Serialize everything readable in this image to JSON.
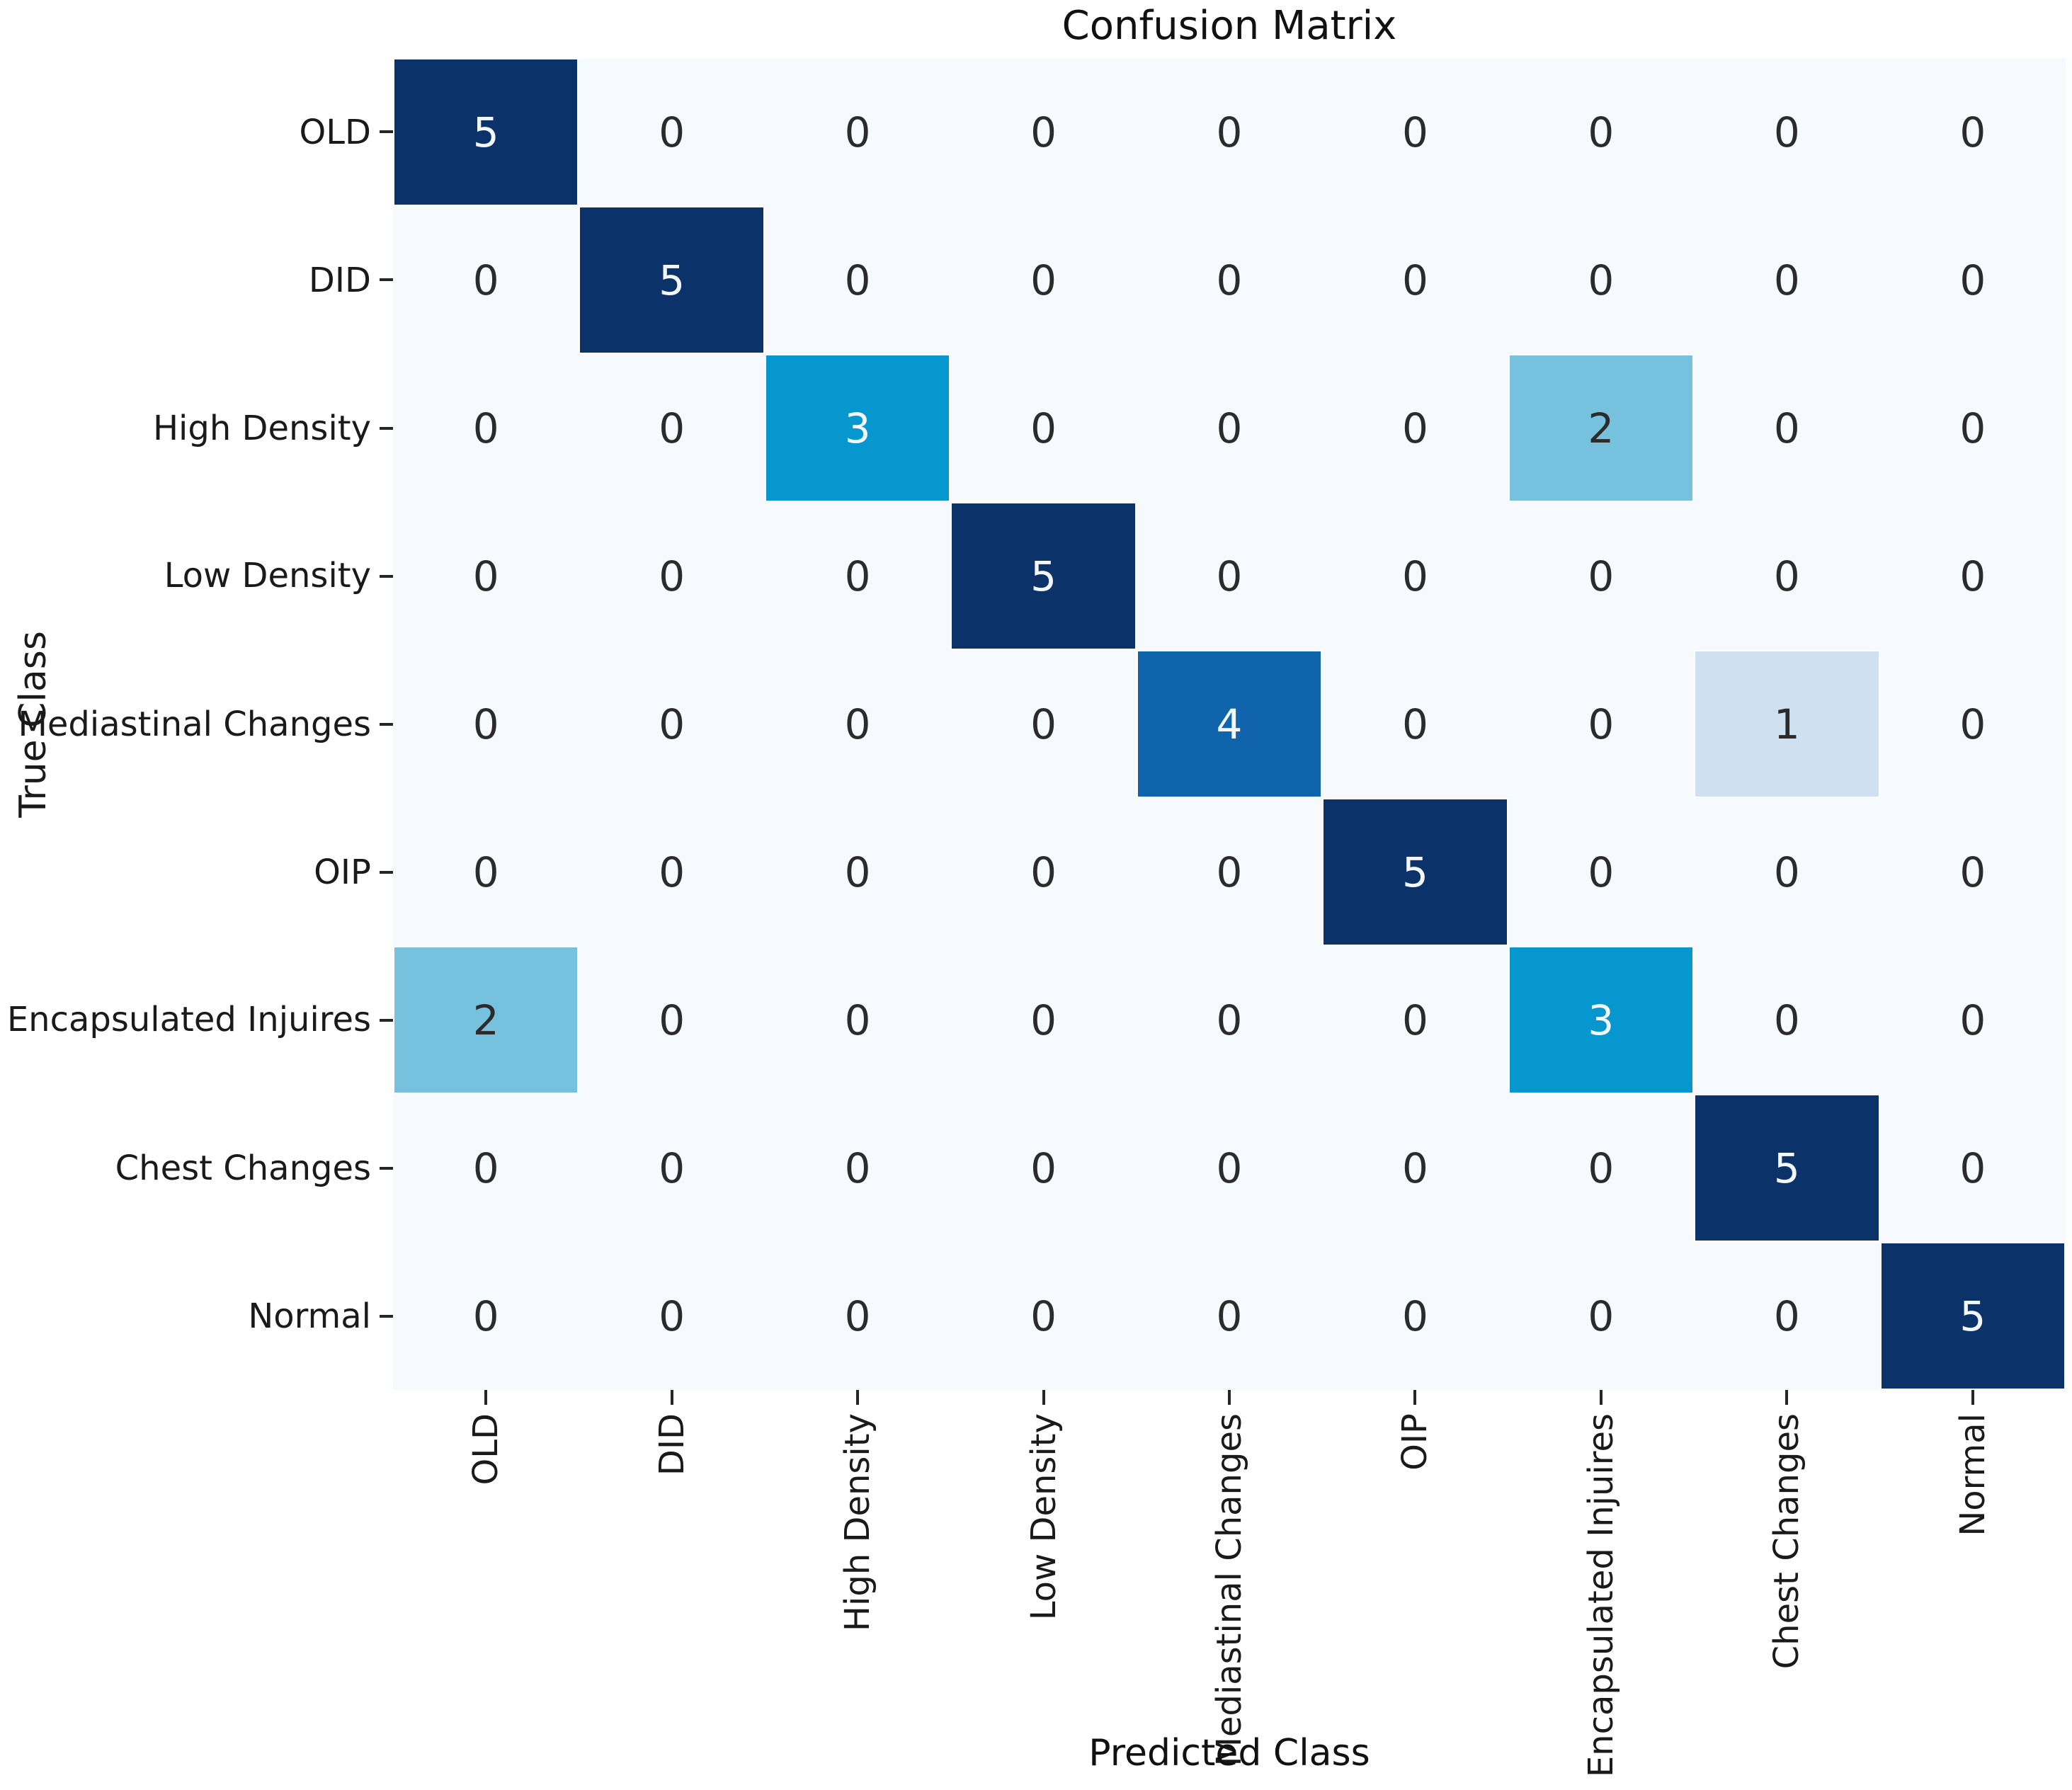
{
  "chart_data": {
    "type": "heatmap",
    "title": "Confusion Matrix",
    "xlabel": "Predicted Class",
    "ylabel": "True Class",
    "categories": [
      "OLD",
      "DID",
      "High Density",
      "Low Density",
      "Mediastinal Changes",
      "OIP",
      "Encapsulated Injuires",
      "Chest Changes",
      "Normal"
    ],
    "matrix": [
      [
        5,
        0,
        0,
        0,
        0,
        0,
        0,
        0,
        0
      ],
      [
        0,
        5,
        0,
        0,
        0,
        0,
        0,
        0,
        0
      ],
      [
        0,
        0,
        3,
        0,
        0,
        0,
        2,
        0,
        0
      ],
      [
        0,
        0,
        0,
        5,
        0,
        0,
        0,
        0,
        0
      ],
      [
        0,
        0,
        0,
        0,
        4,
        0,
        0,
        1,
        0
      ],
      [
        0,
        0,
        0,
        0,
        0,
        5,
        0,
        0,
        0
      ],
      [
        2,
        0,
        0,
        0,
        0,
        0,
        3,
        0,
        0
      ],
      [
        0,
        0,
        0,
        0,
        0,
        0,
        0,
        5,
        0
      ],
      [
        0,
        0,
        0,
        0,
        0,
        0,
        0,
        0,
        5
      ]
    ],
    "value_range": [
      0,
      5
    ],
    "value_colors": {
      "0": "#f6f9fd",
      "1": "#cfe1f1",
      "2": "#76c1de",
      "3": "#0697ce",
      "4": "#0f64ab",
      "5": "#0b3269"
    },
    "dark_text_color": "#2b2b2b",
    "light_text_color": "#f2f7fb",
    "light_text_threshold": 3,
    "tick_color": "#262626",
    "cell_border_color": "#ffffff",
    "legend": "none",
    "grid": "off"
  }
}
